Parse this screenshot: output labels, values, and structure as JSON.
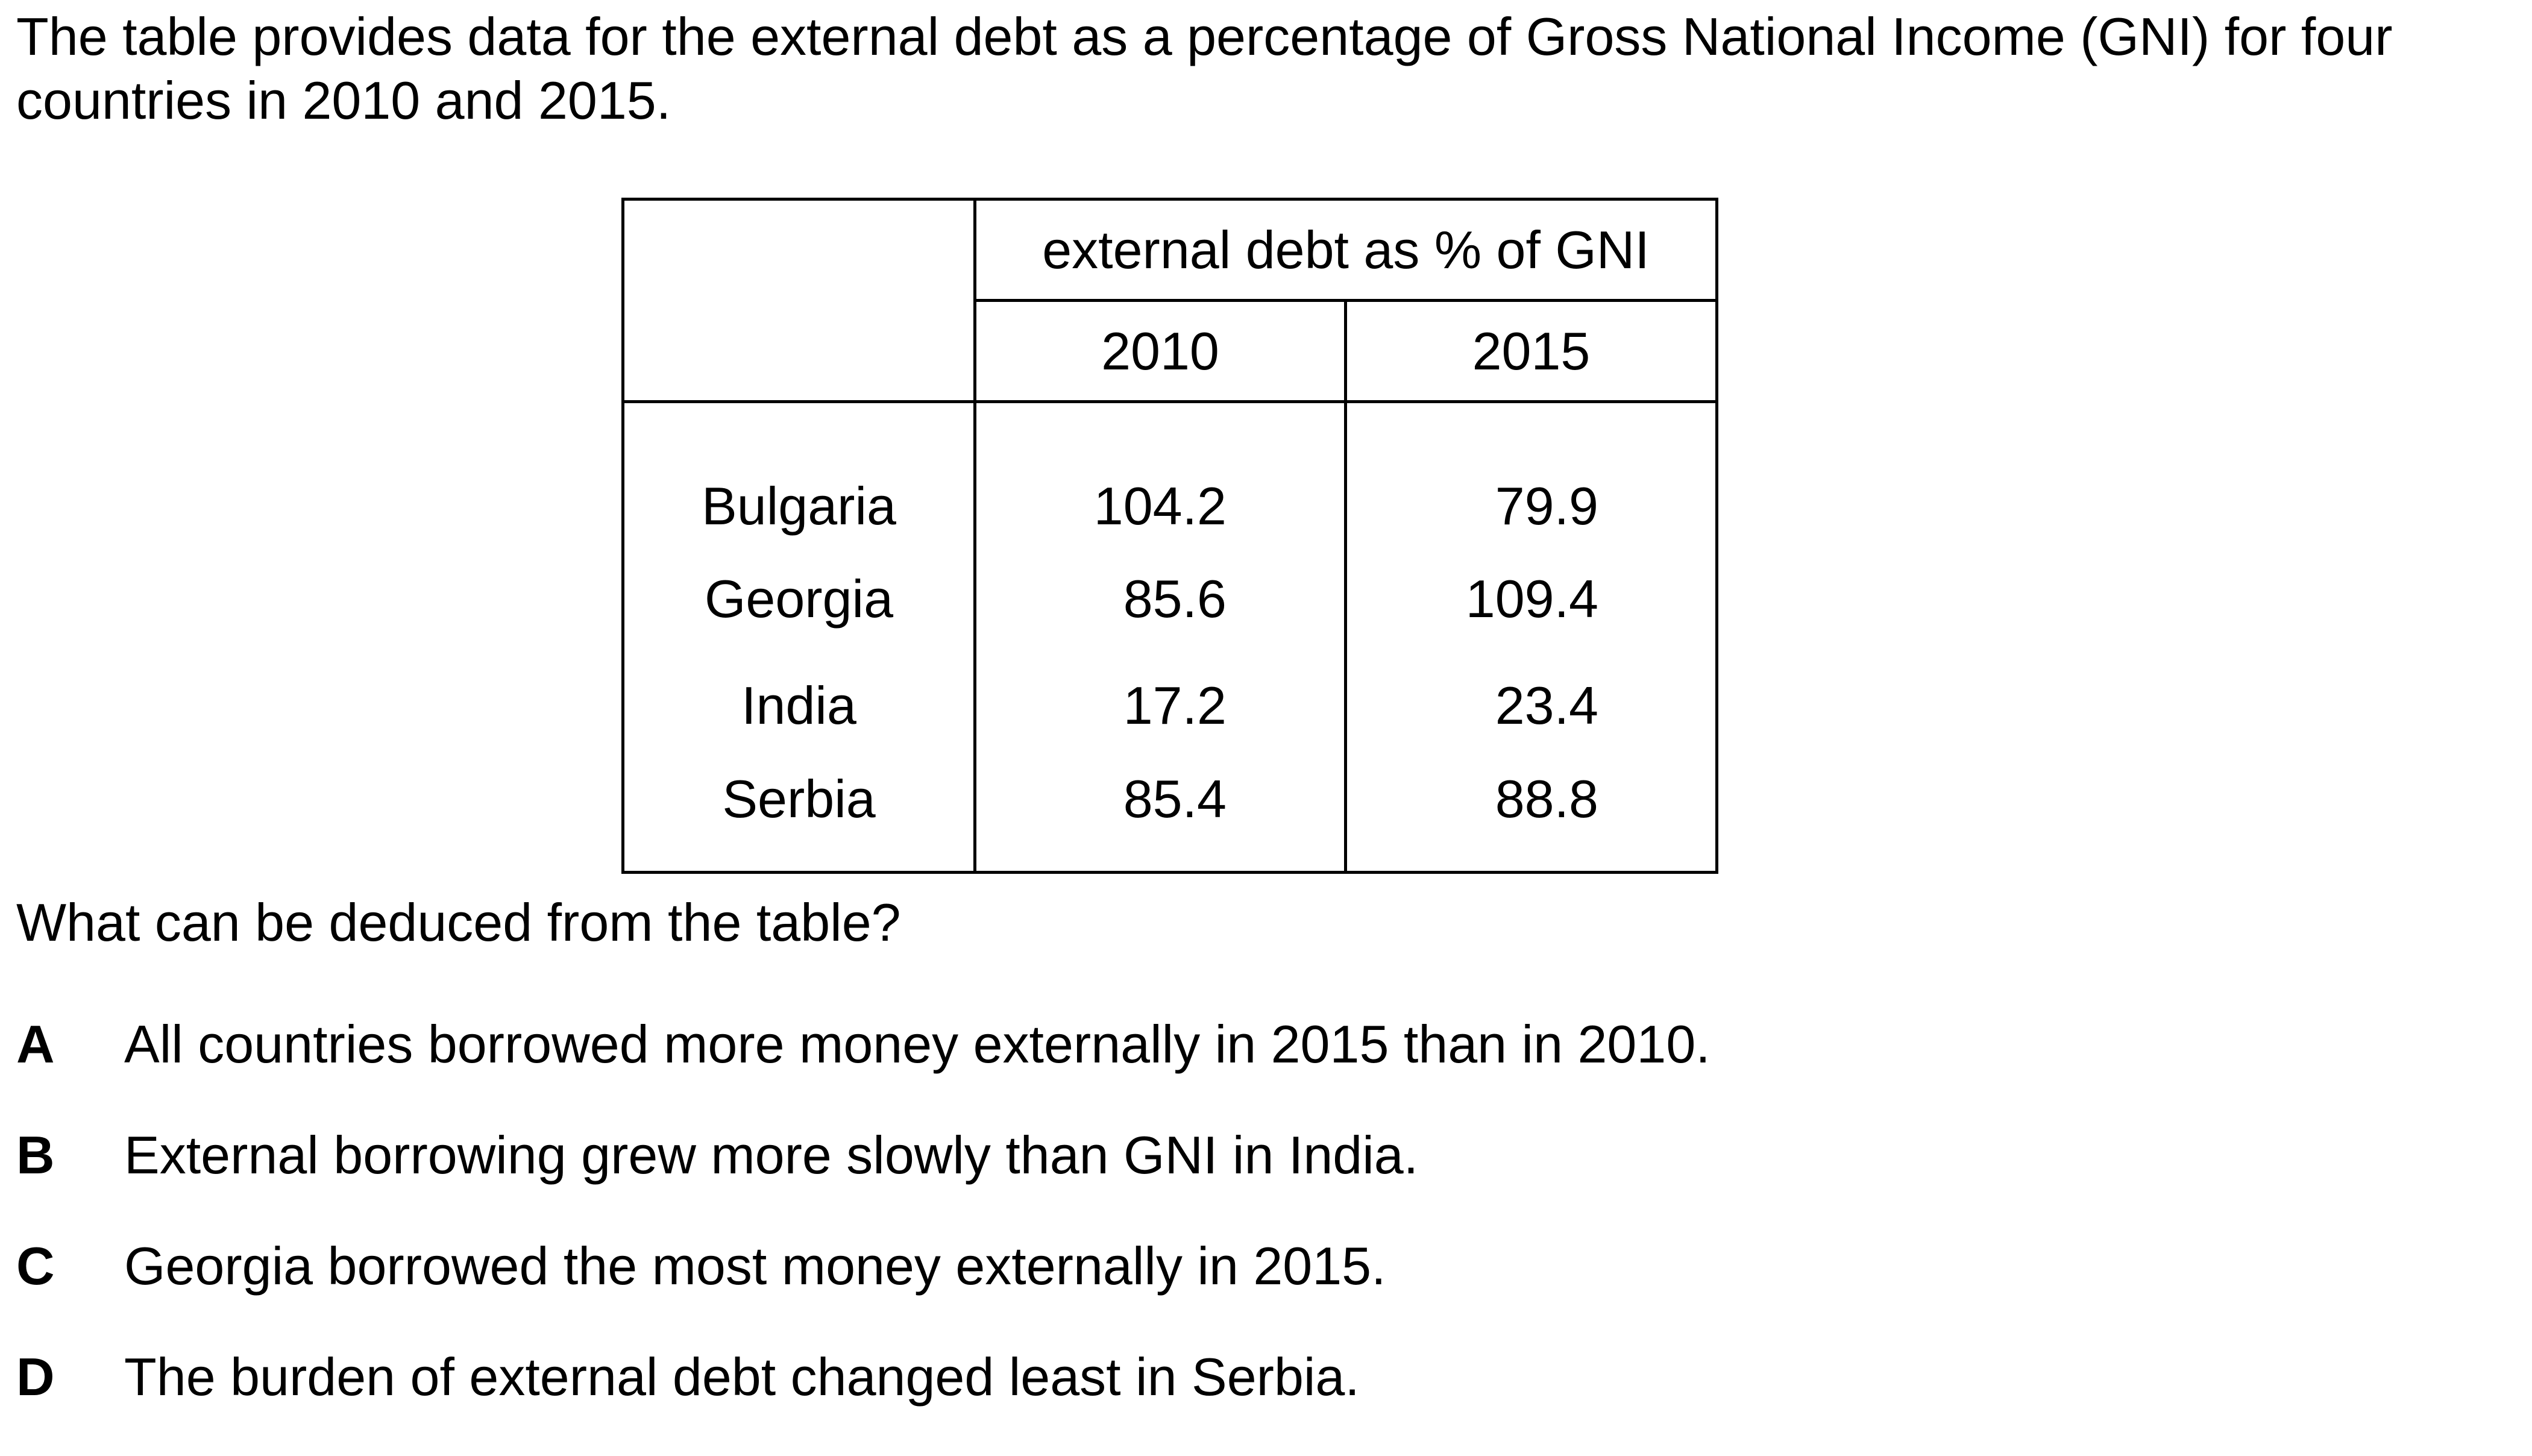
{
  "intro_text": "The table provides data for the external debt as a percentage of Gross National Income (GNI) for four countries in 2010 and 2015.",
  "chart_data": {
    "type": "table",
    "group_header": "external debt as % of GNI",
    "columns": [
      "2010",
      "2015"
    ],
    "rows": [
      {
        "country": "Bulgaria",
        "values": [
          "104.2",
          "79.9"
        ]
      },
      {
        "country": "Georgia",
        "values": [
          "85.6",
          "109.4"
        ]
      },
      {
        "country": "India",
        "values": [
          "17.2",
          "23.4"
        ]
      },
      {
        "country": "Serbia",
        "values": [
          "85.4",
          "88.8"
        ]
      }
    ]
  },
  "question": "What can be deduced from the table?",
  "options": [
    {
      "letter": "A",
      "text": "All countries borrowed more money externally in 2015 than in 2010."
    },
    {
      "letter": "B",
      "text": "External borrowing grew more slowly than GNI in India."
    },
    {
      "letter": "C",
      "text": "Georgia borrowed the most money externally in 2015."
    },
    {
      "letter": "D",
      "text": "The burden of external debt changed least in Serbia."
    }
  ]
}
